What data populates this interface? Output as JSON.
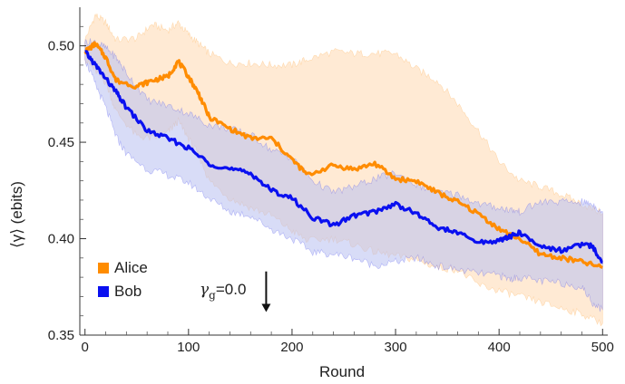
{
  "chart_data": {
    "type": "line",
    "title": "",
    "xlabel": "Round",
    "ylabel": "⟨γ⟩ (ebits)",
    "xlim": [
      0,
      500
    ],
    "ylim": [
      0.35,
      0.52
    ],
    "xticks": [
      0,
      100,
      200,
      300,
      400,
      500
    ],
    "yticks": [
      0.35,
      0.4,
      0.45,
      0.5
    ],
    "ytick_labels": [
      "0.35",
      "0.40",
      "0.45",
      "0.50"
    ],
    "grid": false,
    "legend_position": "bottom-left",
    "annotation": {
      "text": "γg=0.0",
      "symbol": "γ",
      "subscript": "g",
      "rest": "=0.0",
      "arrow_x": 175,
      "arrow_y_from": 0.383,
      "arrow_y_to": 0.362
    },
    "series": [
      {
        "name": "Alice",
        "color": "#ff8c00",
        "band_color": "#ffd9b0",
        "x": [
          0,
          10,
          20,
          30,
          50,
          65,
          80,
          90,
          100,
          110,
          120,
          140,
          160,
          180,
          200,
          215,
          240,
          260,
          280,
          300,
          320,
          340,
          360,
          380,
          400,
          420,
          440,
          460,
          480,
          500
        ],
        "y": [
          0.497,
          0.501,
          0.494,
          0.482,
          0.479,
          0.482,
          0.484,
          0.492,
          0.484,
          0.475,
          0.463,
          0.457,
          0.452,
          0.452,
          0.441,
          0.433,
          0.438,
          0.436,
          0.439,
          0.431,
          0.43,
          0.424,
          0.419,
          0.413,
          0.405,
          0.4,
          0.392,
          0.39,
          0.388,
          0.385
        ],
        "upper": [
          0.503,
          0.516,
          0.512,
          0.503,
          0.504,
          0.511,
          0.508,
          0.512,
          0.506,
          0.501,
          0.496,
          0.491,
          0.491,
          0.49,
          0.49,
          0.493,
          0.497,
          0.496,
          0.496,
          0.496,
          0.488,
          0.482,
          0.47,
          0.456,
          0.44,
          0.43,
          0.427,
          0.423,
          0.418,
          0.413
        ],
        "lower": [
          0.493,
          0.487,
          0.481,
          0.466,
          0.453,
          0.452,
          0.455,
          0.461,
          0.452,
          0.443,
          0.43,
          0.421,
          0.416,
          0.412,
          0.404,
          0.399,
          0.4,
          0.397,
          0.393,
          0.391,
          0.389,
          0.385,
          0.384,
          0.376,
          0.373,
          0.37,
          0.367,
          0.364,
          0.361,
          0.356
        ]
      },
      {
        "name": "Bob",
        "color": "#0a10f0",
        "band_color": "#b8bff0",
        "x": [
          0,
          10,
          20,
          30,
          40,
          60,
          80,
          100,
          120,
          140,
          160,
          180,
          200,
          220,
          240,
          260,
          280,
          300,
          320,
          340,
          360,
          380,
          400,
          410,
          420,
          440,
          460,
          480,
          490,
          500
        ],
        "y": [
          0.497,
          0.49,
          0.483,
          0.476,
          0.468,
          0.456,
          0.452,
          0.447,
          0.439,
          0.436,
          0.434,
          0.425,
          0.421,
          0.411,
          0.407,
          0.412,
          0.414,
          0.418,
          0.413,
          0.406,
          0.403,
          0.398,
          0.399,
          0.401,
          0.403,
          0.396,
          0.394,
          0.397,
          0.396,
          0.388
        ],
        "upper": [
          0.502,
          0.502,
          0.499,
          0.494,
          0.486,
          0.472,
          0.469,
          0.465,
          0.459,
          0.457,
          0.454,
          0.446,
          0.442,
          0.43,
          0.424,
          0.427,
          0.431,
          0.434,
          0.428,
          0.424,
          0.423,
          0.418,
          0.416,
          0.415,
          0.414,
          0.419,
          0.419,
          0.419,
          0.418,
          0.414
        ],
        "lower": [
          0.493,
          0.48,
          0.468,
          0.453,
          0.444,
          0.436,
          0.433,
          0.429,
          0.421,
          0.414,
          0.412,
          0.405,
          0.4,
          0.393,
          0.392,
          0.39,
          0.386,
          0.388,
          0.39,
          0.386,
          0.384,
          0.382,
          0.381,
          0.379,
          0.38,
          0.378,
          0.377,
          0.375,
          0.367,
          0.363
        ]
      }
    ]
  }
}
